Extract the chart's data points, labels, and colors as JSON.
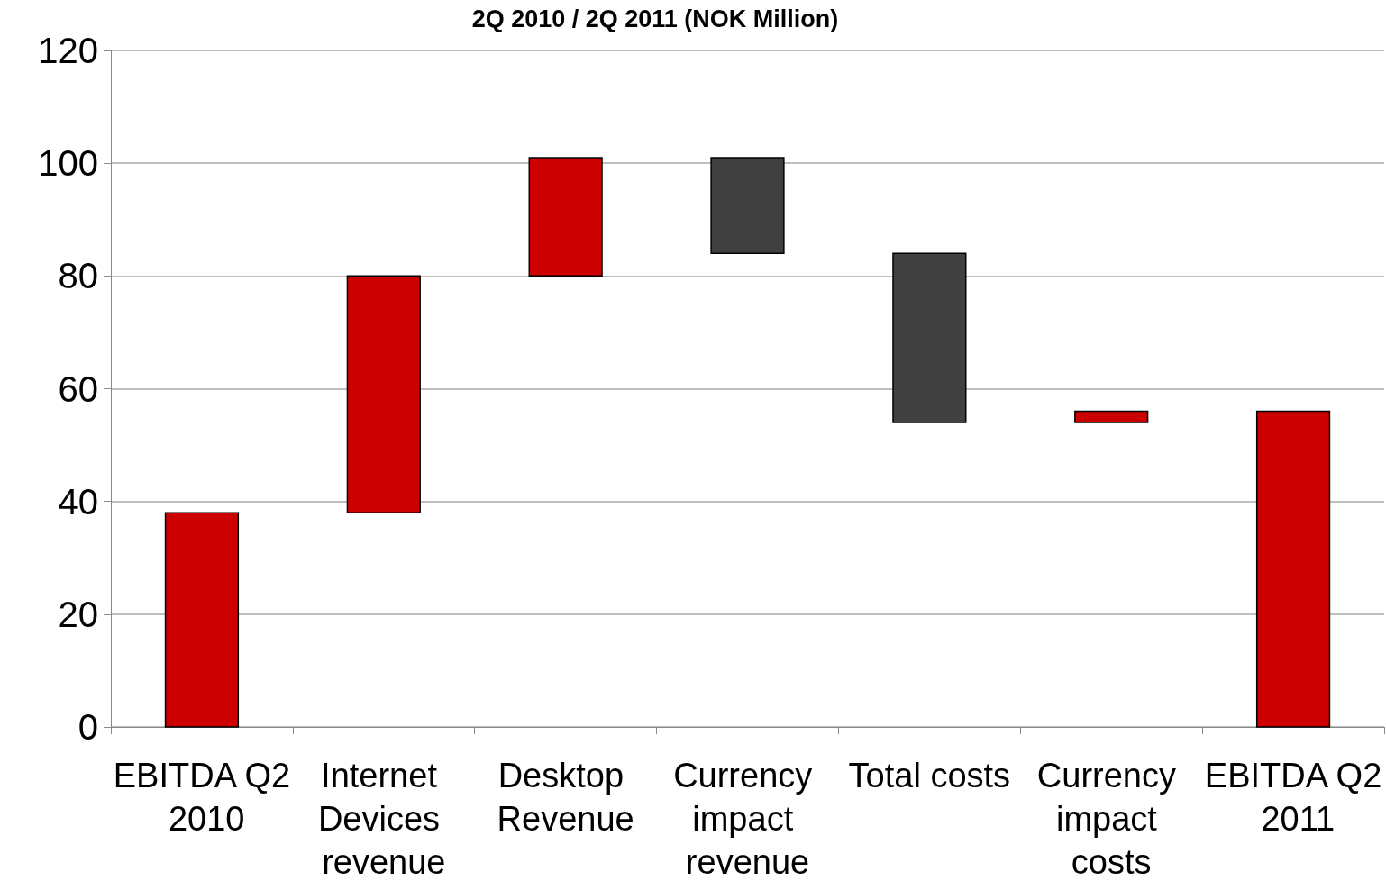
{
  "chart_data": {
    "type": "bar",
    "title": "2Q 2010 / 2Q 2011 (NOK Million)",
    "categories": [
      "EBITDA Q2 2010",
      "Internet Devices revenue",
      "Desktop Revenue",
      "Currency impact revenue",
      "Total costs",
      "Currency impact costs",
      "EBITDA Q2 2011"
    ],
    "values": [
      38,
      42,
      21,
      17,
      30,
      2,
      56
    ],
    "base": [
      0,
      38,
      80,
      84,
      54,
      54,
      0
    ],
    "colors": [
      "#cc0000",
      "#cc0000",
      "#cc0000",
      "#404040",
      "#404040",
      "#cc0000",
      "#cc0000"
    ],
    "ylim": [
      0,
      120
    ],
    "yticks": [
      0,
      20,
      40,
      60,
      80,
      100,
      120
    ],
    "grid": "y"
  }
}
